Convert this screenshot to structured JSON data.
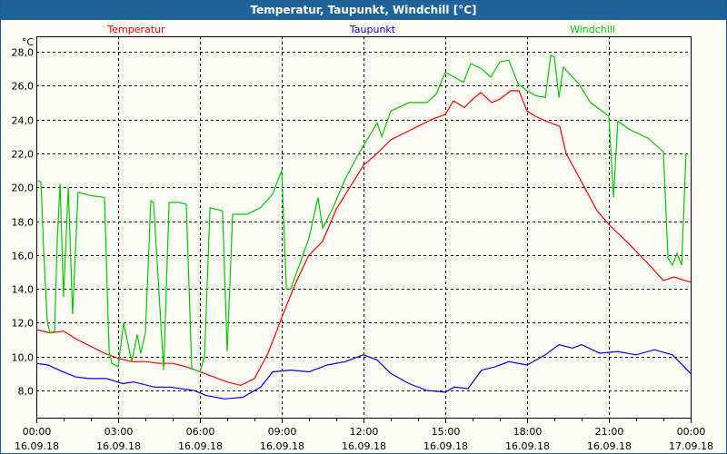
{
  "window": {
    "title": "Temperatur, Taupunkt, Windchill [°C]"
  },
  "chart_data": {
    "type": "line",
    "title": "Temperatur, Taupunkt, Windchill [°C]",
    "ylabel": "°C",
    "xlabel": "",
    "xlim_hours": [
      0,
      24
    ],
    "ylim": [
      7.0,
      29.0
    ],
    "grid": true,
    "legend_placement": "top",
    "yticks": [
      "8,0",
      "10,0",
      "12,0",
      "14,0",
      "16,0",
      "18,0",
      "20,0",
      "22,0",
      "24,0",
      "26,0",
      "28,0"
    ],
    "ytick_values": [
      8,
      10,
      12,
      14,
      16,
      18,
      20,
      22,
      24,
      26,
      28
    ],
    "xticks": [
      {
        "h": 0,
        "time": "00:00",
        "date": "16.09.18"
      },
      {
        "h": 3,
        "time": "03:00",
        "date": "16.09.18"
      },
      {
        "h": 6,
        "time": "06:00",
        "date": "16.09.18"
      },
      {
        "h": 9,
        "time": "09:00",
        "date": "16.09.18"
      },
      {
        "h": 12,
        "time": "12:00",
        "date": "16.09.18"
      },
      {
        "h": 15,
        "time": "15:00",
        "date": "16.09.18"
      },
      {
        "h": 18,
        "time": "18:00",
        "date": "16.09.18"
      },
      {
        "h": 21,
        "time": "21:00",
        "date": "16.09.18"
      },
      {
        "h": 24,
        "time": "00:00",
        "date": "17.09.18"
      }
    ],
    "series": [
      {
        "name": "Temperatur",
        "color": "#ff0000",
        "points": [
          [
            0,
            11.6
          ],
          [
            0.5,
            11.4
          ],
          [
            1,
            11.5
          ],
          [
            1.5,
            11.0
          ],
          [
            2,
            10.6
          ],
          [
            2.5,
            10.2
          ],
          [
            3,
            9.9
          ],
          [
            3.5,
            9.7
          ],
          [
            4,
            9.7
          ],
          [
            4.5,
            9.6
          ],
          [
            5,
            9.6
          ],
          [
            5.5,
            9.4
          ],
          [
            6,
            9.1
          ],
          [
            6.5,
            8.8
          ],
          [
            7,
            8.5
          ],
          [
            7.5,
            8.3
          ],
          [
            8,
            8.7
          ],
          [
            8.5,
            10.2
          ],
          [
            9,
            12.3
          ],
          [
            9.5,
            14.3
          ],
          [
            10,
            16.0
          ],
          [
            10.5,
            16.8
          ],
          [
            11,
            18.7
          ],
          [
            11.5,
            20.0
          ],
          [
            12,
            21.3
          ],
          [
            12.5,
            22.0
          ],
          [
            13,
            22.8
          ],
          [
            13.5,
            23.2
          ],
          [
            14,
            23.6
          ],
          [
            14.5,
            24.0
          ],
          [
            15,
            24.3
          ],
          [
            15.3,
            25.1
          ],
          [
            15.7,
            24.7
          ],
          [
            16,
            25.2
          ],
          [
            16.3,
            25.6
          ],
          [
            16.7,
            25.0
          ],
          [
            17,
            25.2
          ],
          [
            17.4,
            25.7
          ],
          [
            17.7,
            25.7
          ],
          [
            18,
            24.5
          ],
          [
            18.3,
            24.2
          ],
          [
            18.7,
            23.9
          ],
          [
            19.2,
            23.6
          ],
          [
            19.43,
            22.0
          ],
          [
            20.07,
            20.1
          ],
          [
            20.57,
            18.6
          ],
          [
            21,
            17.8
          ],
          [
            21.77,
            16.6
          ],
          [
            22.43,
            15.5
          ],
          [
            23,
            14.5
          ],
          [
            23.4,
            14.7
          ],
          [
            23.77,
            14.5
          ],
          [
            24,
            14.4
          ]
        ]
      },
      {
        "name": "Taupunkt",
        "color": "#0000ff",
        "points": [
          [
            0,
            9.6
          ],
          [
            0.43,
            9.5
          ],
          [
            0.83,
            9.2
          ],
          [
            1.43,
            8.8
          ],
          [
            1.93,
            8.7
          ],
          [
            2.57,
            8.7
          ],
          [
            3.17,
            8.4
          ],
          [
            3.57,
            8.5
          ],
          [
            4.33,
            8.2
          ],
          [
            4.9,
            8.2
          ],
          [
            5.77,
            8.0
          ],
          [
            6.23,
            7.7
          ],
          [
            6.9,
            7.5
          ],
          [
            7.57,
            7.6
          ],
          [
            8.23,
            8.2
          ],
          [
            8.67,
            9.1
          ],
          [
            9.33,
            9.2
          ],
          [
            10,
            9.1
          ],
          [
            10.67,
            9.5
          ],
          [
            11.33,
            9.7
          ],
          [
            12,
            10.1
          ],
          [
            12.5,
            9.8
          ],
          [
            13,
            9.0
          ],
          [
            13.67,
            8.4
          ],
          [
            14.33,
            8.0
          ],
          [
            15,
            7.9
          ],
          [
            15.33,
            8.2
          ],
          [
            15.83,
            8.1
          ],
          [
            16.33,
            9.2
          ],
          [
            16.83,
            9.4
          ],
          [
            17.33,
            9.7
          ],
          [
            18,
            9.5
          ],
          [
            18.67,
            10.1
          ],
          [
            19.17,
            10.7
          ],
          [
            19.67,
            10.5
          ],
          [
            20,
            10.7
          ],
          [
            20.67,
            10.2
          ],
          [
            21.33,
            10.3
          ],
          [
            22,
            10.1
          ],
          [
            22.67,
            10.4
          ],
          [
            23.33,
            10.1
          ],
          [
            24,
            9.0
          ]
        ]
      },
      {
        "name": "Windchill",
        "color": "#00cc00",
        "points": [
          [
            0.06,
            20.4
          ],
          [
            0.17,
            20.3
          ],
          [
            0.27,
            16.2
          ],
          [
            0.4,
            12.1
          ],
          [
            0.5,
            11.4
          ],
          [
            0.67,
            11.5
          ],
          [
            0.77,
            17.0
          ],
          [
            0.87,
            20.2
          ],
          [
            1,
            13.5
          ],
          [
            1.17,
            20.0
          ],
          [
            1.33,
            12.5
          ],
          [
            1.53,
            19.7
          ],
          [
            2,
            19.5
          ],
          [
            2.5,
            19.4
          ],
          [
            2.67,
            10.3
          ],
          [
            2.77,
            9.6
          ],
          [
            3,
            9.4
          ],
          [
            3.2,
            12.0
          ],
          [
            3.5,
            9.7
          ],
          [
            3.7,
            11.3
          ],
          [
            3.83,
            10.2
          ],
          [
            4,
            11.4
          ],
          [
            4.2,
            19.2
          ],
          [
            4.3,
            19.1
          ],
          [
            4.67,
            9.2
          ],
          [
            4.87,
            19.1
          ],
          [
            5.23,
            19.1
          ],
          [
            5.5,
            19.0
          ],
          [
            5.7,
            9.3
          ],
          [
            6,
            9.1
          ],
          [
            6.17,
            10.0
          ],
          [
            6.37,
            18.8
          ],
          [
            6.83,
            18.6
          ],
          [
            7,
            10.3
          ],
          [
            7.2,
            18.4
          ],
          [
            7.73,
            18.4
          ],
          [
            8.23,
            18.8
          ],
          [
            8.67,
            19.6
          ],
          [
            9,
            21.0
          ],
          [
            9.17,
            14.0
          ],
          [
            9.33,
            14.0
          ],
          [
            9.67,
            15.5
          ],
          [
            10,
            17.0
          ],
          [
            10.33,
            19.4
          ],
          [
            10.5,
            17.6
          ],
          [
            10.83,
            18.6
          ],
          [
            11.33,
            20.5
          ],
          [
            11.83,
            22.0
          ],
          [
            12.5,
            23.8
          ],
          [
            12.67,
            23.0
          ],
          [
            13,
            24.5
          ],
          [
            13.67,
            25.0
          ],
          [
            14.33,
            25.0
          ],
          [
            14.67,
            25.5
          ],
          [
            15,
            26.8
          ],
          [
            15.33,
            26.5
          ],
          [
            15.67,
            26.2
          ],
          [
            15.93,
            27.3
          ],
          [
            16.33,
            27.0
          ],
          [
            16.67,
            26.5
          ],
          [
            17,
            27.4
          ],
          [
            17.33,
            27.5
          ],
          [
            17.67,
            26.1
          ],
          [
            18,
            25.7
          ],
          [
            18.33,
            25.4
          ],
          [
            18.67,
            25.3
          ],
          [
            18.87,
            27.8
          ],
          [
            19,
            27.7
          ],
          [
            19.17,
            25.3
          ],
          [
            19.33,
            27.1
          ],
          [
            19.9,
            26.1
          ],
          [
            20.33,
            25.0
          ],
          [
            21,
            24.2
          ],
          [
            21.17,
            19.4
          ],
          [
            21.33,
            23.9
          ],
          [
            21.77,
            23.4
          ],
          [
            22.43,
            22.9
          ],
          [
            23,
            22.1
          ],
          [
            23.17,
            15.8
          ],
          [
            23.33,
            15.4
          ],
          [
            23.5,
            16.1
          ],
          [
            23.67,
            15.4
          ],
          [
            23.83,
            22.0
          ]
        ]
      }
    ]
  }
}
